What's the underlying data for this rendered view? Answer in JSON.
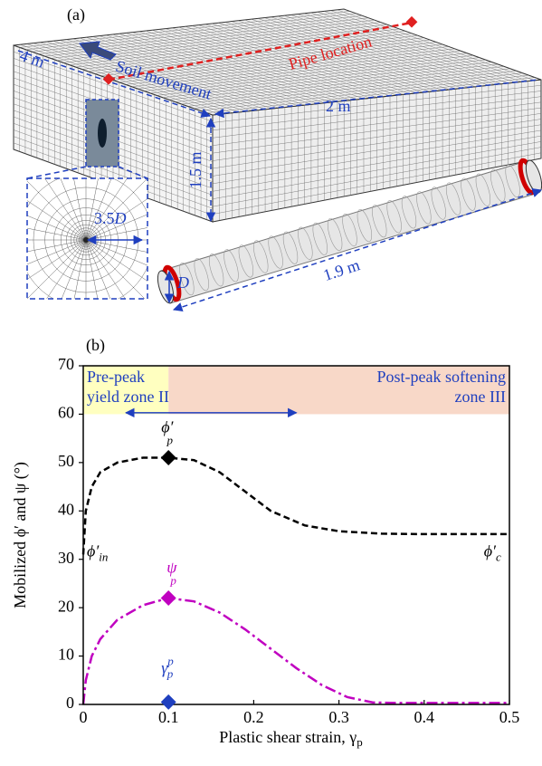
{
  "panel_a": {
    "label": "(a)",
    "soil_movement": "Soil movement",
    "pipe_location": "Pipe location",
    "length": "4 m",
    "width": "2 m",
    "height": "1.5 m",
    "pipe_length": "1.9 m",
    "zoom_factor": "3.5",
    "diameter": "D"
  },
  "chart_data": {
    "type": "line",
    "label": "(b)",
    "y_label": "Mobilized ϕ′ and ψ (°)",
    "x_label": "Plastic shear strain, γ",
    "x_label_sub": "p",
    "xlim": [
      0,
      0.5
    ],
    "ylim": [
      0,
      70
    ],
    "xticks": [
      0,
      0.1,
      0.2,
      0.3,
      0.4,
      0.5
    ],
    "yticks": [
      0,
      10,
      20,
      30,
      40,
      50,
      60,
      70
    ],
    "zones": [
      {
        "lines": [
          "Pre-peak",
          "yield zone II"
        ],
        "x": [
          0,
          0.1
        ],
        "y": [
          60,
          70
        ],
        "color": "#ffffc0"
      },
      {
        "lines": [
          "Post-peak softening",
          "zone III"
        ],
        "x": [
          0.1,
          0.5
        ],
        "y": [
          60,
          70
        ],
        "color": "#f8d8c8"
      }
    ],
    "arrow": {
      "x": [
        0.05,
        0.25
      ],
      "y": 60.3,
      "color": "#1f3fbf"
    },
    "series": [
      {
        "color": "#000000",
        "dash": "7,4",
        "x": [
          0,
          0.003,
          0.01,
          0.02,
          0.04,
          0.07,
          0.1,
          0.13,
          0.16,
          0.19,
          0.22,
          0.26,
          0.3,
          0.35,
          0.4,
          0.5
        ],
        "values": [
          31,
          40,
          45,
          48,
          50,
          51,
          51,
          50.5,
          48,
          44,
          40,
          37,
          35.8,
          35.3,
          35.2,
          35.2
        ]
      },
      {
        "color": "#c000c0",
        "dash": "12,4,3,4",
        "x": [
          0,
          0.003,
          0.01,
          0.02,
          0.04,
          0.07,
          0.1,
          0.13,
          0.16,
          0.19,
          0.22,
          0.25,
          0.28,
          0.31,
          0.34,
          0.37,
          0.5
        ],
        "values": [
          0,
          5,
          10,
          13.5,
          17.5,
          20.5,
          22,
          21.3,
          19,
          15.5,
          11.5,
          7.5,
          4,
          1.5,
          0.4,
          0.3,
          0.3
        ]
      }
    ],
    "points": [
      {
        "x": 0.1,
        "y": 51,
        "color": "#000000",
        "label": "ϕ′",
        "sub": "p"
      },
      {
        "x": 0.1,
        "y": 22,
        "color": "#c000c0",
        "label": "ψ",
        "sub": "p"
      },
      {
        "x": 0.1,
        "y": 0.5,
        "color": "#1f3fbf",
        "label": "γ",
        "sub": "p",
        "sup": "p"
      }
    ],
    "curve_labels": [
      {
        "text": "ϕ′",
        "sub": "in"
      },
      {
        "text": "ϕ′",
        "sub": "c"
      }
    ]
  }
}
